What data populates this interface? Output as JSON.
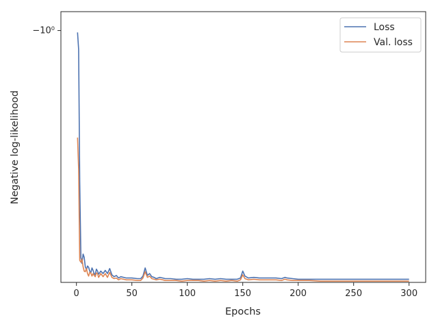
{
  "chart_data": {
    "type": "line",
    "title": "",
    "xlabel": "Epochs",
    "ylabel": "Negative log-likelihood",
    "yscale": "symlog",
    "xlim": [
      -14,
      315
    ],
    "x_ticks": [
      0,
      50,
      100,
      150,
      200,
      250,
      300
    ],
    "x_tick_labels": [
      "0",
      "50",
      "100",
      "150",
      "200",
      "250",
      "300"
    ],
    "y_ticks": [
      -1
    ],
    "y_tick_labels": [
      "−10⁰"
    ],
    "grid": false,
    "legend": {
      "position": "top-right",
      "entries": [
        "Loss",
        "Val. loss"
      ]
    },
    "colors": {
      "Loss": "#4c72b0",
      "Val. loss": "#dd8452",
      "axis": "#262626",
      "background": "#ffffff"
    },
    "series": [
      {
        "name": "Loss",
        "color": "#4c72b0",
        "x": [
          1,
          2,
          3,
          4,
          5,
          6,
          7,
          8,
          9,
          10,
          11,
          12,
          13,
          14,
          15,
          16,
          17,
          18,
          19,
          20,
          22,
          24,
          26,
          28,
          30,
          32,
          34,
          36,
          38,
          40,
          45,
          50,
          55,
          58,
          60,
          62,
          64,
          66,
          68,
          70,
          72,
          75,
          78,
          80,
          85,
          90,
          95,
          100,
          105,
          110,
          115,
          120,
          125,
          130,
          135,
          140,
          145,
          148,
          150,
          152,
          155,
          160,
          165,
          170,
          175,
          180,
          185,
          188,
          190,
          195,
          200,
          210,
          220,
          230,
          240,
          250,
          260,
          270,
          280,
          290,
          300
        ],
        "values": [
          -1.003,
          -1.03,
          -1.24,
          -1.36,
          -1.37,
          -1.355,
          -1.36,
          -1.375,
          -1.38,
          -1.374,
          -1.376,
          -1.382,
          -1.385,
          -1.377,
          -1.381,
          -1.386,
          -1.388,
          -1.379,
          -1.382,
          -1.387,
          -1.382,
          -1.386,
          -1.381,
          -1.386,
          -1.378,
          -1.388,
          -1.391,
          -1.389,
          -1.393,
          -1.391,
          -1.393,
          -1.393,
          -1.394,
          -1.394,
          -1.39,
          -1.377,
          -1.389,
          -1.386,
          -1.391,
          -1.392,
          -1.394,
          -1.392,
          -1.393,
          -1.394,
          -1.394,
          -1.395,
          -1.395,
          -1.394,
          -1.395,
          -1.395,
          -1.395,
          -1.394,
          -1.395,
          -1.394,
          -1.395,
          -1.395,
          -1.395,
          -1.393,
          -1.382,
          -1.39,
          -1.393,
          -1.392,
          -1.393,
          -1.393,
          -1.393,
          -1.393,
          -1.394,
          -1.392,
          -1.393,
          -1.394,
          -1.395,
          -1.395,
          -1.395,
          -1.395,
          -1.395,
          -1.395,
          -1.395,
          -1.395,
          -1.395,
          -1.395,
          -1.395
        ]
      },
      {
        "name": "Val. loss",
        "color": "#dd8452",
        "x": [
          1,
          2,
          3,
          4,
          5,
          6,
          7,
          8,
          9,
          10,
          11,
          12,
          13,
          14,
          15,
          16,
          17,
          18,
          19,
          20,
          22,
          24,
          26,
          28,
          30,
          32,
          34,
          36,
          38,
          40,
          45,
          50,
          55,
          58,
          60,
          62,
          64,
          66,
          68,
          70,
          72,
          75,
          78,
          80,
          85,
          90,
          95,
          100,
          105,
          110,
          115,
          120,
          125,
          130,
          135,
          140,
          145,
          148,
          150,
          152,
          155,
          160,
          165,
          170,
          175,
          180,
          185,
          188,
          190,
          195,
          200,
          210,
          220,
          230,
          240,
          250,
          260,
          270,
          280,
          290,
          300
        ],
        "values": [
          -1.17,
          -1.22,
          -1.365,
          -1.368,
          -1.363,
          -1.375,
          -1.382,
          -1.383,
          -1.378,
          -1.386,
          -1.39,
          -1.384,
          -1.385,
          -1.39,
          -1.386,
          -1.389,
          -1.391,
          -1.385,
          -1.386,
          -1.392,
          -1.386,
          -1.391,
          -1.386,
          -1.392,
          -1.384,
          -1.392,
          -1.394,
          -1.393,
          -1.396,
          -1.394,
          -1.396,
          -1.396,
          -1.397,
          -1.397,
          -1.393,
          -1.383,
          -1.392,
          -1.39,
          -1.394,
          -1.395,
          -1.396,
          -1.395,
          -1.396,
          -1.397,
          -1.397,
          -1.397,
          -1.398,
          -1.397,
          -1.397,
          -1.397,
          -1.398,
          -1.397,
          -1.398,
          -1.397,
          -1.398,
          -1.397,
          -1.398,
          -1.396,
          -1.388,
          -1.394,
          -1.396,
          -1.395,
          -1.396,
          -1.396,
          -1.396,
          -1.396,
          -1.397,
          -1.395,
          -1.396,
          -1.397,
          -1.397,
          -1.397,
          -1.398,
          -1.398,
          -1.398,
          -1.398,
          -1.398,
          -1.398,
          -1.398,
          -1.398,
          -1.398
        ]
      }
    ]
  }
}
